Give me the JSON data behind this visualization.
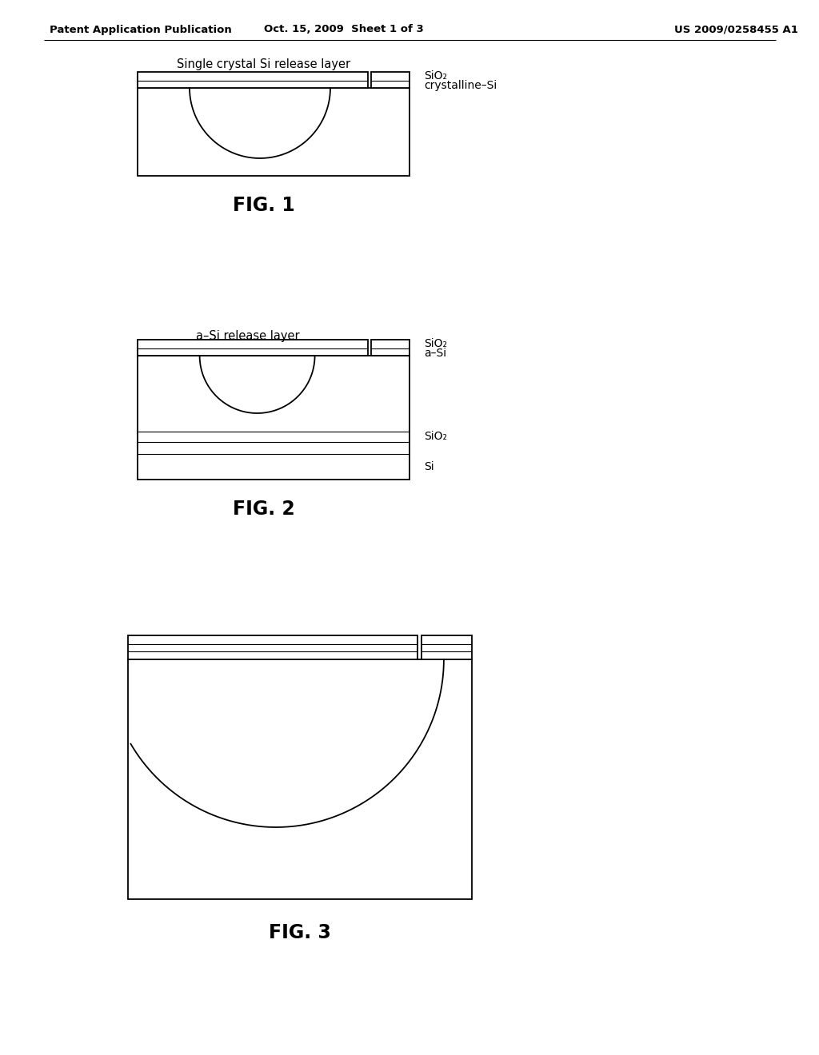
{
  "bg_color": "#ffffff",
  "line_color": "#000000",
  "header_left": "Patent Application Publication",
  "header_mid": "Oct. 15, 2009  Sheet 1 of 3",
  "header_right": "US 2009/0258455 A1",
  "fig1_title": "Single crystal Si release layer",
  "fig1_label": "FIG. 1",
  "fig1_ann1": "SiO₂",
  "fig1_ann2": "crystalline–Si",
  "fig2_title": "a–Si release layer",
  "fig2_label": "FIG. 2",
  "fig2_ann1": "SiO₂",
  "fig2_ann2": "a–Si",
  "fig2_ann3": "SiO₂",
  "fig2_ann4": "Si",
  "fig3_label": "FIG. 3"
}
